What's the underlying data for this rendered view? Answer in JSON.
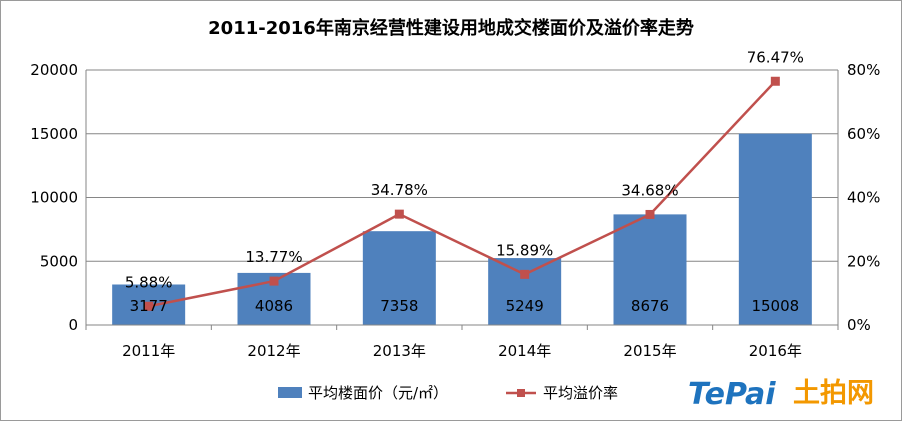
{
  "chart_data": {
    "type": "bar",
    "title": "2011-2016年南京经营性建设用地成交楼面价及溢价率走势",
    "categories": [
      "2011年",
      "2012年",
      "2013年",
      "2014年",
      "2015年",
      "2016年"
    ],
    "series": [
      {
        "name": "平均楼面价（元/㎡）",
        "type": "bar",
        "axis": "left",
        "color": "#4f81bd",
        "values": [
          3177,
          4086,
          7358,
          5249,
          8676,
          15008
        ],
        "labels": [
          "3177",
          "4086",
          "7358",
          "5249",
          "8676",
          "15008"
        ]
      },
      {
        "name": "平均溢价率",
        "type": "line",
        "axis": "right",
        "color": "#c0504d",
        "values": [
          5.88,
          13.77,
          34.78,
          15.89,
          34.68,
          76.47
        ],
        "labels": [
          "5.88%",
          "13.77%",
          "34.78%",
          "15.89%",
          "34.68%",
          "76.47%"
        ]
      }
    ],
    "y_left": {
      "min": 0,
      "max": 20000,
      "ticks": [
        "0",
        "5000",
        "10000",
        "15000",
        "20000"
      ]
    },
    "y_right": {
      "min": 0,
      "max": 80,
      "unit": "%",
      "ticks": [
        "0%",
        "20%",
        "40%",
        "60%",
        "80%"
      ]
    },
    "grid": true,
    "legend": "bottom"
  },
  "logo": {
    "latin": "TePai",
    "cjk": "土拍网",
    "colors": {
      "latin": "#1e73be",
      "cjk": "#f39800"
    }
  }
}
